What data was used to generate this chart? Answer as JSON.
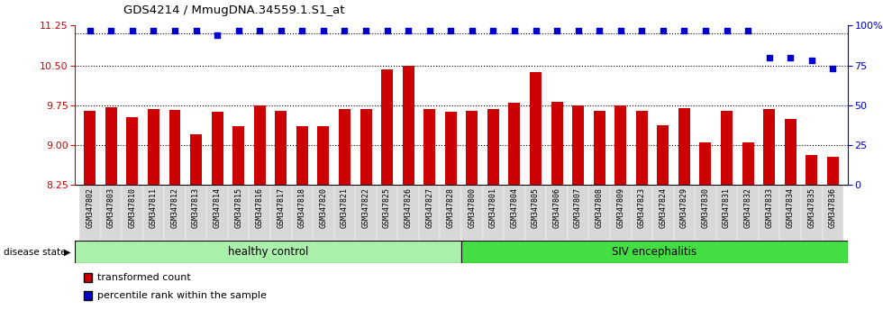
{
  "title": "GDS4214 / MmugDNA.34559.1.S1_at",
  "samples": [
    "GSM347802",
    "GSM347803",
    "GSM347810",
    "GSM347811",
    "GSM347812",
    "GSM347813",
    "GSM347814",
    "GSM347815",
    "GSM347816",
    "GSM347817",
    "GSM347818",
    "GSM347820",
    "GSM347821",
    "GSM347822",
    "GSM347825",
    "GSM347826",
    "GSM347827",
    "GSM347828",
    "GSM347800",
    "GSM347801",
    "GSM347804",
    "GSM347805",
    "GSM347806",
    "GSM347807",
    "GSM347808",
    "GSM347809",
    "GSM347823",
    "GSM347824",
    "GSM347829",
    "GSM347830",
    "GSM347831",
    "GSM347832",
    "GSM347833",
    "GSM347834",
    "GSM347835",
    "GSM347836"
  ],
  "bar_values": [
    9.65,
    9.72,
    9.52,
    9.68,
    9.67,
    9.2,
    9.62,
    9.35,
    9.75,
    9.65,
    9.35,
    9.35,
    9.68,
    9.68,
    10.42,
    10.5,
    9.68,
    9.62,
    9.65,
    9.68,
    9.8,
    10.38,
    9.82,
    9.75,
    9.65,
    9.75,
    9.65,
    9.38,
    9.7,
    9.05,
    9.65,
    9.05,
    9.68,
    9.5,
    8.82,
    8.78
  ],
  "percentile_values": [
    97,
    97,
    97,
    97,
    97,
    97,
    94,
    97,
    97,
    97,
    97,
    97,
    97,
    97,
    97,
    97,
    97,
    97,
    97,
    97,
    97,
    97,
    97,
    97,
    97,
    97,
    97,
    97,
    97,
    97,
    97,
    97,
    80,
    80,
    78,
    73
  ],
  "bar_color": "#cc0000",
  "dot_color": "#0000cc",
  "ylim_left": [
    8.25,
    11.25
  ],
  "ylim_right": [
    0,
    100
  ],
  "yticks_left": [
    8.25,
    9.0,
    9.75,
    10.5,
    11.25
  ],
  "yticks_right": [
    0,
    25,
    50,
    75,
    100
  ],
  "gridlines": [
    9.0,
    9.75,
    10.5,
    11.1
  ],
  "healthy_label": "healthy control",
  "siv_label": "SIV encephalitis",
  "disease_state_label": "disease state",
  "legend_bar_label": "transformed count",
  "legend_dot_label": "percentile rank within the sample",
  "healthy_count": 18,
  "total_count": 36,
  "healthy_color": "#aaf0aa",
  "siv_color": "#44dd44",
  "tick_bg_color": "#d8d8d8",
  "fig_bg": "#ffffff"
}
